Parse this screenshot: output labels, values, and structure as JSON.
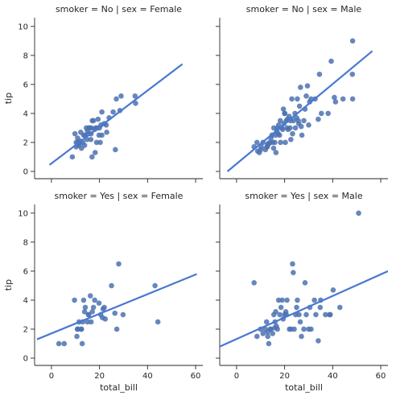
{
  "chart_data": {
    "type": "scatter",
    "xlabel": "total_bill",
    "ylabel": "tip",
    "xlim": [
      -7,
      63
    ],
    "ylim": [
      -0.5,
      10.6
    ],
    "xticks": [
      0,
      20,
      40,
      60
    ],
    "yticks": [
      0,
      2,
      4,
      6,
      8,
      10
    ],
    "point_color": "#4C72B0",
    "line_color": "#4878D0",
    "panels": [
      {
        "title": "smoker = No | sex = Female",
        "row": 0,
        "col": 0,
        "points": [
          [
            10.3,
            1.7
          ],
          [
            11.0,
            2.0
          ],
          [
            10.3,
            2.0
          ],
          [
            10.9,
            2.3
          ],
          [
            11.6,
            1.9
          ],
          [
            12.5,
            1.6
          ],
          [
            12.0,
            2.1
          ],
          [
            13.0,
            2.0
          ],
          [
            13.4,
            2.5
          ],
          [
            14.0,
            2.5
          ],
          [
            14.5,
            3.0
          ],
          [
            15.0,
            2.8
          ],
          [
            15.5,
            3.0
          ],
          [
            16.0,
            3.0
          ],
          [
            16.5,
            2.6
          ],
          [
            16.4,
            2.2
          ],
          [
            17.0,
            3.5
          ],
          [
            17.5,
            3.5
          ],
          [
            18.0,
            2.9
          ],
          [
            18.4,
            3.0
          ],
          [
            19.0,
            3.0
          ],
          [
            19.4,
            3.6
          ],
          [
            20.0,
            3.0
          ],
          [
            20.6,
            3.2
          ],
          [
            21.0,
            2.5
          ],
          [
            21.0,
            4.1
          ],
          [
            22.0,
            3.3
          ],
          [
            23.0,
            2.7
          ],
          [
            24.0,
            3.7
          ],
          [
            25.7,
            4.1
          ],
          [
            27.0,
            5.0
          ],
          [
            29.0,
            5.2
          ],
          [
            34.8,
            5.2
          ],
          [
            35.0,
            4.7
          ],
          [
            9.8,
            2.6
          ],
          [
            8.7,
            1.0
          ],
          [
            12.2,
            2.7
          ],
          [
            14.8,
            2.2
          ],
          [
            15.4,
            2.6
          ],
          [
            16.9,
            1.0
          ],
          [
            18.2,
            1.3
          ],
          [
            26.6,
            1.5
          ],
          [
            20.3,
            2.0
          ],
          [
            22.8,
            3.2
          ],
          [
            28.5,
            4.2
          ],
          [
            11.3,
            1.8
          ],
          [
            13.8,
            1.8
          ],
          [
            16.6,
            3.0
          ],
          [
            19.8,
            2.5
          ],
          [
            18.8,
            2.0
          ]
        ],
        "fit": [
          [
            -0.8,
            0.45
          ],
          [
            54.5,
            7.4
          ]
        ]
      },
      {
        "title": "smoker = No | sex = Male",
        "row": 0,
        "col": 1,
        "points": [
          [
            7.3,
            1.7
          ],
          [
            8.5,
            2.0
          ],
          [
            8.8,
            1.4
          ],
          [
            9.5,
            1.3
          ],
          [
            10.0,
            1.5
          ],
          [
            10.3,
            1.7
          ],
          [
            11.0,
            2.0
          ],
          [
            12.0,
            1.5
          ],
          [
            12.8,
            1.7
          ],
          [
            13.4,
            1.9
          ],
          [
            13.8,
            2.0
          ],
          [
            14.3,
            2.3
          ],
          [
            14.7,
            2.5
          ],
          [
            15.0,
            2.0
          ],
          [
            15.5,
            3.0
          ],
          [
            15.9,
            2.0
          ],
          [
            16.3,
            2.5
          ],
          [
            16.8,
            2.8
          ],
          [
            17.0,
            3.0
          ],
          [
            17.5,
            3.2
          ],
          [
            17.9,
            2.5
          ],
          [
            18.2,
            3.5
          ],
          [
            18.8,
            3.0
          ],
          [
            19.2,
            2.9
          ],
          [
            19.7,
            3.3
          ],
          [
            20.0,
            4.0
          ],
          [
            20.3,
            2.0
          ],
          [
            20.7,
            3.5
          ],
          [
            21.0,
            3.0
          ],
          [
            21.5,
            2.9
          ],
          [
            21.9,
            3.8
          ],
          [
            22.3,
            3.0
          ],
          [
            22.6,
            2.2
          ],
          [
            23.0,
            5.0
          ],
          [
            23.7,
            3.5
          ],
          [
            24.3,
            4.0
          ],
          [
            25.0,
            3.7
          ],
          [
            25.3,
            5.0
          ],
          [
            25.7,
            3.5
          ],
          [
            26.2,
            4.5
          ],
          [
            26.6,
            5.8
          ],
          [
            27.2,
            2.5
          ],
          [
            28.0,
            3.5
          ],
          [
            28.5,
            4.3
          ],
          [
            29.0,
            5.2
          ],
          [
            29.5,
            5.9
          ],
          [
            30.4,
            4.8
          ],
          [
            31.0,
            5.0
          ],
          [
            32.7,
            5.0
          ],
          [
            34.0,
            3.6
          ],
          [
            34.5,
            6.7
          ],
          [
            35.3,
            4.0
          ],
          [
            38.1,
            4.0
          ],
          [
            39.4,
            7.6
          ],
          [
            40.7,
            5.1
          ],
          [
            41.2,
            4.8
          ],
          [
            48.3,
            9.0
          ],
          [
            48.2,
            6.7
          ],
          [
            48.3,
            5.0
          ],
          [
            44.3,
            5.0
          ],
          [
            13.0,
            1.9
          ],
          [
            16.4,
            1.3
          ],
          [
            18.3,
            2.0
          ],
          [
            20.1,
            4.0
          ],
          [
            24.5,
            3.0
          ],
          [
            22.4,
            3.5
          ],
          [
            17.3,
            2.6
          ],
          [
            15.4,
            1.6
          ],
          [
            12.6,
            1.7
          ],
          [
            21.2,
            3.6
          ],
          [
            23.3,
            2.6
          ],
          [
            26.9,
            3.1
          ],
          [
            19.5,
            4.3
          ],
          [
            25.9,
            3.3
          ],
          [
            30.0,
            3.2
          ]
        ],
        "fit": [
          [
            -3.8,
            0.0
          ],
          [
            56.5,
            8.3
          ]
        ]
      },
      {
        "title": "smoker = Yes | sex = Female",
        "row": 1,
        "col": 0,
        "points": [
          [
            3.1,
            1.0
          ],
          [
            5.3,
            1.0
          ],
          [
            9.6,
            4.0
          ],
          [
            10.6,
            1.5
          ],
          [
            11.0,
            2.0
          ],
          [
            11.5,
            2.5
          ],
          [
            12.5,
            2.0
          ],
          [
            12.8,
            1.0
          ],
          [
            13.0,
            2.5
          ],
          [
            13.4,
            4.0
          ],
          [
            14.1,
            3.5
          ],
          [
            15.0,
            2.5
          ],
          [
            15.4,
            3.0
          ],
          [
            16.2,
            4.3
          ],
          [
            16.5,
            2.5
          ],
          [
            17.0,
            3.2
          ],
          [
            17.5,
            3.5
          ],
          [
            18.0,
            4.0
          ],
          [
            19.8,
            3.8
          ],
          [
            20.5,
            3.0
          ],
          [
            21.5,
            3.4
          ],
          [
            22.0,
            3.5
          ],
          [
            22.4,
            2.7
          ],
          [
            25.0,
            5.0
          ],
          [
            26.4,
            3.1
          ],
          [
            27.2,
            2.0
          ],
          [
            28.0,
            6.5
          ],
          [
            29.8,
            3.0
          ],
          [
            43.1,
            5.0
          ],
          [
            44.3,
            2.5
          ],
          [
            12.4,
            2.0
          ],
          [
            10.8,
            2.0
          ],
          [
            15.5,
            3.0
          ],
          [
            21.2,
            2.8
          ],
          [
            13.8,
            3.2
          ]
        ],
        "fit": [
          [
            -6.0,
            1.3
          ],
          [
            60.5,
            5.8
          ]
        ]
      },
      {
        "title": "smoker = Yes | sex = Male",
        "row": 1,
        "col": 1,
        "points": [
          [
            7.3,
            5.2
          ],
          [
            8.5,
            1.5
          ],
          [
            10.0,
            2.0
          ],
          [
            11.0,
            1.7
          ],
          [
            12.0,
            2.0
          ],
          [
            12.5,
            2.5
          ],
          [
            13.0,
            1.5
          ],
          [
            13.4,
            1.0
          ],
          [
            14.3,
            2.0
          ],
          [
            15.0,
            1.7
          ],
          [
            15.5,
            3.0
          ],
          [
            16.0,
            2.5
          ],
          [
            16.3,
            3.2
          ],
          [
            17.0,
            2.0
          ],
          [
            17.5,
            4.0
          ],
          [
            18.0,
            3.0
          ],
          [
            18.5,
            3.5
          ],
          [
            19.0,
            4.0
          ],
          [
            19.4,
            2.7
          ],
          [
            20.0,
            3.0
          ],
          [
            20.5,
            3.2
          ],
          [
            21.0,
            4.0
          ],
          [
            22.0,
            2.0
          ],
          [
            22.7,
            2.0
          ],
          [
            23.3,
            6.5
          ],
          [
            23.6,
            5.9
          ],
          [
            24.0,
            2.0
          ],
          [
            24.6,
            3.0
          ],
          [
            25.0,
            3.5
          ],
          [
            25.3,
            4.0
          ],
          [
            26.0,
            3.0
          ],
          [
            26.5,
            2.5
          ],
          [
            27.0,
            1.5
          ],
          [
            28.0,
            2.0
          ],
          [
            28.5,
            5.2
          ],
          [
            29.0,
            3.0
          ],
          [
            30.0,
            2.0
          ],
          [
            30.5,
            3.5
          ],
          [
            31.0,
            2.0
          ],
          [
            32.4,
            4.0
          ],
          [
            33.0,
            3.0
          ],
          [
            34.0,
            1.2
          ],
          [
            34.8,
            3.5
          ],
          [
            35.0,
            4.0
          ],
          [
            37.0,
            3.0
          ],
          [
            39.0,
            3.0
          ],
          [
            40.2,
            4.7
          ],
          [
            43.0,
            3.5
          ],
          [
            50.8,
            10.0
          ],
          [
            38.7,
            3.0
          ],
          [
            16.6,
            2.2
          ],
          [
            14.0,
            2.0
          ],
          [
            20.7,
            3.0
          ],
          [
            12.9,
            1.8
          ],
          [
            15.9,
            2.1
          ]
        ],
        "fit": [
          [
            -7.0,
            0.8
          ],
          [
            63.0,
            6.0
          ]
        ]
      }
    ]
  }
}
